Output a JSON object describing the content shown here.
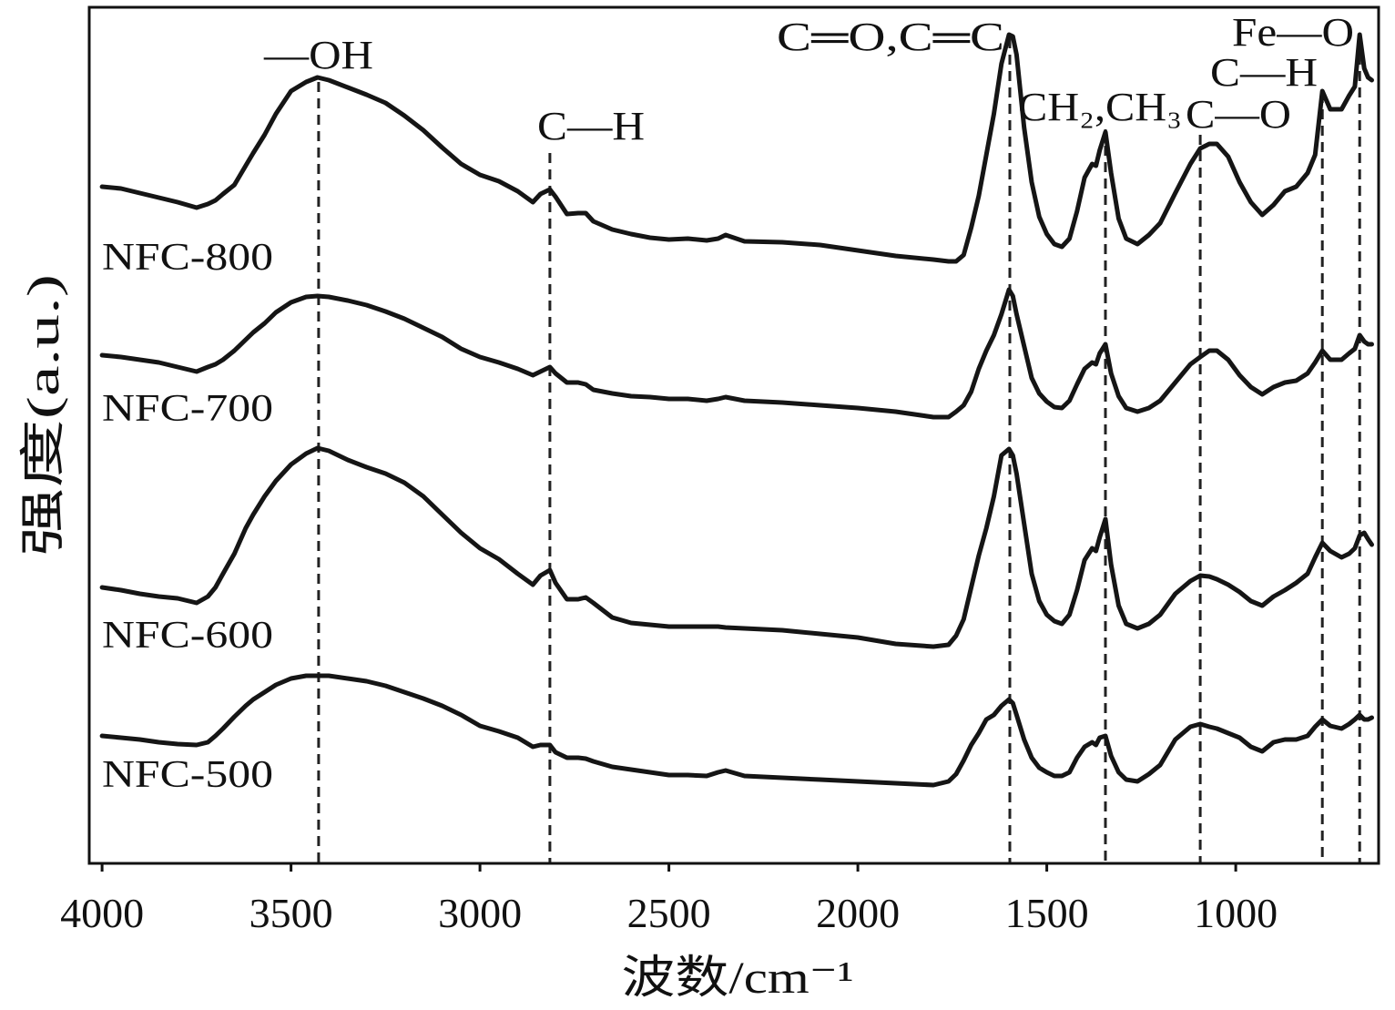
{
  "chart_data": {
    "type": "line",
    "xlabel": "波数/cm⁻¹",
    "ylabel": "强度(a.u.)",
    "xlim": [
      4034,
      622
    ],
    "ylim": [
      0,
      94
    ],
    "xticks": [
      4000,
      3500,
      3000,
      2500,
      2000,
      1500,
      1000
    ],
    "grid": false,
    "legend": false,
    "colors": {
      "line": "#151515",
      "reference_line": "#222222"
    },
    "x": [
      4000,
      3950,
      3900,
      3850,
      3800,
      3750,
      3720,
      3700,
      3680,
      3650,
      3620,
      3600,
      3570,
      3540,
      3500,
      3460,
      3430,
      3400,
      3350,
      3300,
      3250,
      3200,
      3150,
      3100,
      3050,
      3000,
      2950,
      2900,
      2860,
      2840,
      2815,
      2800,
      2770,
      2740,
      2720,
      2700,
      2650,
      2600,
      2550,
      2500,
      2450,
      2400,
      2370,
      2350,
      2300,
      2200,
      2100,
      2000,
      1900,
      1800,
      1760,
      1740,
      1720,
      1700,
      1680,
      1660,
      1640,
      1620,
      1600,
      1590,
      1580,
      1560,
      1540,
      1520,
      1500,
      1480,
      1460,
      1440,
      1420,
      1400,
      1380,
      1370,
      1360,
      1345,
      1330,
      1310,
      1290,
      1260,
      1230,
      1200,
      1160,
      1120,
      1094,
      1070,
      1050,
      1020,
      990,
      960,
      930,
      900,
      870,
      840,
      810,
      790,
      771,
      750,
      720,
      700,
      685,
      672,
      660,
      650,
      640
    ],
    "series": [
      {
        "name": "NFC-800",
        "values": [
          74.3,
          74.1,
          73.6,
          73.1,
          72.6,
          72.0,
          72.4,
          72.8,
          73.5,
          74.5,
          76.6,
          78.0,
          80.0,
          82.3,
          84.8,
          85.8,
          86.3,
          86.0,
          85.2,
          84.4,
          83.5,
          82.1,
          80.5,
          78.6,
          76.8,
          75.6,
          74.9,
          73.8,
          72.6,
          73.5,
          74.0,
          73.2,
          71.3,
          71.4,
          71.4,
          70.5,
          69.6,
          69.1,
          68.7,
          68.5,
          68.6,
          68.4,
          68.6,
          69.0,
          68.3,
          68.2,
          67.9,
          67.3,
          66.7,
          66.3,
          66.1,
          66.1,
          66.8,
          69.8,
          73.3,
          77.8,
          82.3,
          87.8,
          91.0,
          90.8,
          88.8,
          80.8,
          74.8,
          71.0,
          69.1,
          68.0,
          67.7,
          68.6,
          71.6,
          75.3,
          76.8,
          76.6,
          78.3,
          80.3,
          75.8,
          70.8,
          68.6,
          68.0,
          69.0,
          70.3,
          73.6,
          76.8,
          78.5,
          79.0,
          79.0,
          77.6,
          74.8,
          72.6,
          71.2,
          72.3,
          73.8,
          74.3,
          75.8,
          77.8,
          84.8,
          82.8,
          82.8,
          84.3,
          85.3,
          91.0,
          87.3,
          86.3,
          86.0
        ]
      },
      {
        "name": "NFC-700",
        "values": [
          55.8,
          55.6,
          55.3,
          55.0,
          54.5,
          54.0,
          54.5,
          54.8,
          55.3,
          56.3,
          57.5,
          58.3,
          59.3,
          60.5,
          61.6,
          62.2,
          62.3,
          62.2,
          61.8,
          61.3,
          60.6,
          59.8,
          58.8,
          57.8,
          56.5,
          55.6,
          55.0,
          54.3,
          53.6,
          54.0,
          54.5,
          53.8,
          52.8,
          52.8,
          52.6,
          52.0,
          51.6,
          51.3,
          51.2,
          51.0,
          51.0,
          50.8,
          51.0,
          51.2,
          50.8,
          50.6,
          50.3,
          50.0,
          49.6,
          49.0,
          49.0,
          49.6,
          50.3,
          51.8,
          54.3,
          56.3,
          58.0,
          60.3,
          63.0,
          62.3,
          60.3,
          56.8,
          53.3,
          51.6,
          50.7,
          50.1,
          50.0,
          50.8,
          52.6,
          54.3,
          55.0,
          54.8,
          56.0,
          57.0,
          53.8,
          51.3,
          50.0,
          49.6,
          50.0,
          50.8,
          52.8,
          54.8,
          55.6,
          56.3,
          56.3,
          55.3,
          53.6,
          52.3,
          51.5,
          52.3,
          52.8,
          53.0,
          53.8,
          55.0,
          56.3,
          55.3,
          55.3,
          56.0,
          56.5,
          58.0,
          57.3,
          57.0,
          57.0
        ]
      },
      {
        "name": "NFC-600",
        "values": [
          30.3,
          30.0,
          29.6,
          29.3,
          29.1,
          28.6,
          29.3,
          30.3,
          31.8,
          34.0,
          36.8,
          38.3,
          40.3,
          42.0,
          43.8,
          45.0,
          45.6,
          45.3,
          44.3,
          43.5,
          42.8,
          41.8,
          40.3,
          38.3,
          36.3,
          34.6,
          33.4,
          31.8,
          30.6,
          31.6,
          32.2,
          30.8,
          29.0,
          29.0,
          29.2,
          28.6,
          27.0,
          26.4,
          26.2,
          26.0,
          26.0,
          26.0,
          26.0,
          25.9,
          25.8,
          25.6,
          25.2,
          24.8,
          24.1,
          23.8,
          24.0,
          25.0,
          26.8,
          30.3,
          33.8,
          36.8,
          40.3,
          44.8,
          45.5,
          44.8,
          42.8,
          37.3,
          31.8,
          28.8,
          27.3,
          26.6,
          26.3,
          27.3,
          30.0,
          33.3,
          34.6,
          34.3,
          35.8,
          37.8,
          32.8,
          28.3,
          26.3,
          25.8,
          26.3,
          27.3,
          29.6,
          31.0,
          31.6,
          31.5,
          31.2,
          30.6,
          29.8,
          28.8,
          28.3,
          29.3,
          30.0,
          30.8,
          31.8,
          33.6,
          35.2,
          34.3,
          33.6,
          34.0,
          34.6,
          36.0,
          36.3,
          35.6,
          35.0
        ]
      },
      {
        "name": "NFC-500",
        "values": [
          14.0,
          13.8,
          13.6,
          13.3,
          13.1,
          13.0,
          13.3,
          14.0,
          14.8,
          16.1,
          17.3,
          18.0,
          18.8,
          19.6,
          20.3,
          20.6,
          20.6,
          20.6,
          20.3,
          20.0,
          19.5,
          18.8,
          18.1,
          17.3,
          16.3,
          15.1,
          14.5,
          13.8,
          12.8,
          13.0,
          13.0,
          12.2,
          11.6,
          11.6,
          11.5,
          11.2,
          10.6,
          10.3,
          10.0,
          9.7,
          9.7,
          9.6,
          10.0,
          10.2,
          9.6,
          9.4,
          9.2,
          9.0,
          8.8,
          8.6,
          9.0,
          9.8,
          11.3,
          13.0,
          14.3,
          15.8,
          16.3,
          17.3,
          18.0,
          17.6,
          16.3,
          13.6,
          11.6,
          10.5,
          10.0,
          9.6,
          9.6,
          10.0,
          11.6,
          12.8,
          13.3,
          13.0,
          13.8,
          14.0,
          11.8,
          10.0,
          9.2,
          9.0,
          9.8,
          10.8,
          13.6,
          15.0,
          15.3,
          15.0,
          14.8,
          14.3,
          13.8,
          12.8,
          12.3,
          13.3,
          13.6,
          13.6,
          14.0,
          15.0,
          15.8,
          15.1,
          14.8,
          15.3,
          15.8,
          16.3,
          15.8,
          15.8,
          16.0
        ]
      }
    ],
    "annotations": [
      {
        "label": "—OH",
        "x": 3427
      },
      {
        "label": "C—H",
        "x": 2815
      },
      {
        "label": "C═O,C═C",
        "x": 1598
      },
      {
        "label": "CH₂,CH₃",
        "x": 1345
      },
      {
        "label": "C—O",
        "x": 1094
      },
      {
        "label": "C—H",
        "x": 771
      },
      {
        "label": "Fe—O",
        "x": 672
      }
    ]
  }
}
